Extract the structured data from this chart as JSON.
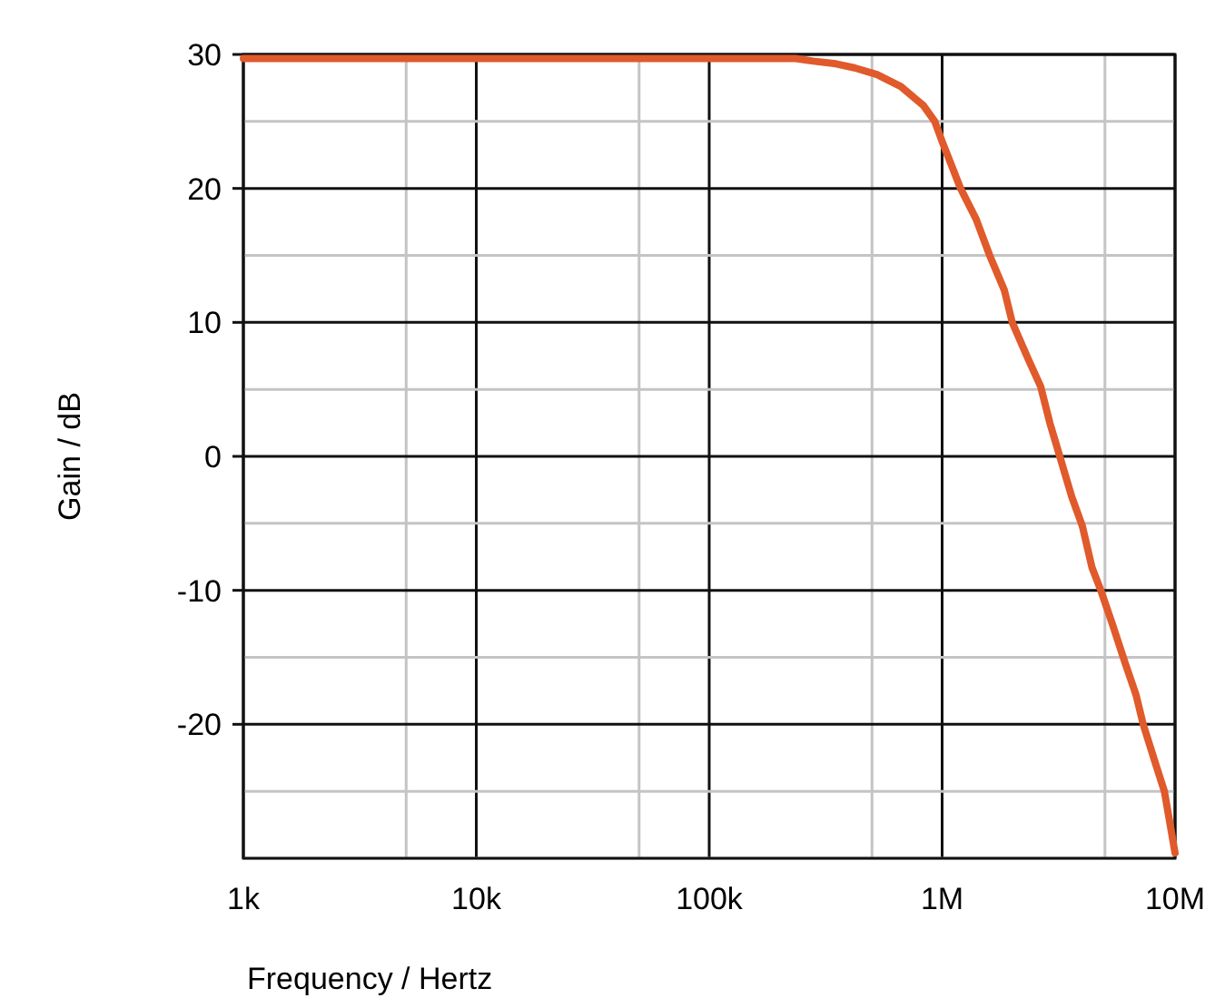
{
  "chart_data": {
    "type": "line",
    "xlabel": "Frequency / Hertz",
    "ylabel": "Gain / dB",
    "log": "x",
    "grid": true,
    "marker": "none",
    "line_style": "solid",
    "xlim": [
      1000,
      10000000
    ],
    "ylim": [
      -30,
      30
    ],
    "xticks": [
      {
        "value": 1000,
        "label": "1k"
      },
      {
        "value": 5000,
        "label": null
      },
      {
        "value": 10000,
        "label": "10k"
      },
      {
        "value": 50000,
        "label": null
      },
      {
        "value": 100000,
        "label": "100k"
      },
      {
        "value": 500000,
        "label": null
      },
      {
        "value": 1000000,
        "label": "1M"
      },
      {
        "value": 5000000,
        "label": null
      },
      {
        "value": 10000000,
        "label": "10M"
      }
    ],
    "yticks": [
      {
        "value": -30,
        "label": null
      },
      {
        "value": -25,
        "label": null
      },
      -20,
      {
        "value": -15,
        "label": null
      },
      -10,
      {
        "value": -5,
        "label": null
      },
      0,
      {
        "value": 5,
        "label": null
      },
      10,
      {
        "value": 15,
        "label": null
      },
      20,
      {
        "value": 25,
        "label": null
      },
      30
    ],
    "series": [
      {
        "color": "#e05a2b",
        "x": [
          1000,
          235000,
          280000,
          350000,
          420000,
          525000,
          665000,
          830000,
          930000,
          1000000,
          1110000,
          1200000,
          1400000,
          1600000,
          1850000,
          2000000,
          2350000,
          2650000,
          2900000,
          3200000,
          3600000,
          4000000,
          4400000,
          4800000,
          5400000,
          6100000,
          6800000,
          7300000,
          8200000,
          9000000,
          10000000
        ],
        "values": [
          29.7,
          29.7,
          29.5,
          29.3,
          29,
          28.5,
          27.6,
          26.2,
          25,
          23.5,
          21.5,
          20,
          17.7,
          15,
          12.4,
          10,
          7.2,
          5.2,
          2.5,
          0,
          -3,
          -5.2,
          -8.3,
          -10,
          -12.6,
          -15.4,
          -17.8,
          -20,
          -22.8,
          -25,
          -29.6
        ]
      }
    ]
  }
}
